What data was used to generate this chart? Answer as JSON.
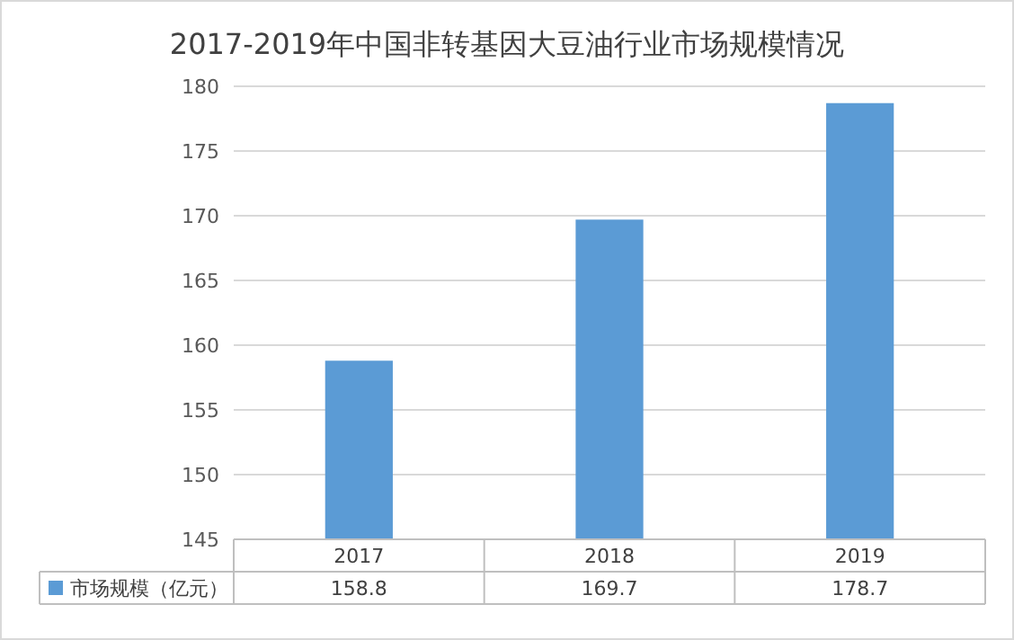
{
  "chart_data": {
    "type": "bar",
    "title": "2017-2019年中国非转基因大豆油行业市场规模情况",
    "categories": [
      "2017",
      "2018",
      "2019"
    ],
    "series": [
      {
        "name": "市场规模（亿元）",
        "color": "#5b9bd5",
        "values": [
          158.8,
          169.7,
          178.7
        ]
      }
    ],
    "ylim": [
      145,
      180
    ],
    "yticks": [
      145,
      150,
      155,
      160,
      165,
      170,
      175,
      180
    ],
    "grid": "y",
    "data_labels": true
  }
}
